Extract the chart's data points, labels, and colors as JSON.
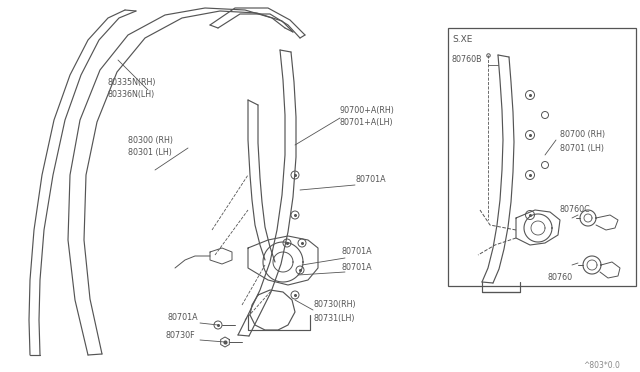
{
  "bg_color": "#ffffff",
  "line_color": "#555555",
  "text_color": "#555555",
  "fig_width": 6.4,
  "fig_height": 3.72,
  "dpi": 100,
  "watermark": "^803*0.0",
  "labels": {
    "80335N_RH": "80335N(RH)",
    "80336N_LH": "80336N(LH)",
    "80300_RH": "80300 (RH)",
    "80301_LH": "80301 (LH)",
    "90700A_RH": "90700+A(RH)",
    "80701A_LH": "80701+A(LH)",
    "80701A": "80701A",
    "80730_RH": "80730(RH)",
    "80731_LH": "80731(LH)",
    "80730F": "80730F",
    "SXE": "S.XE",
    "80760B": "80760B",
    "80700_RH": "80700 (RH)",
    "80701_LH": "80701 (LH)",
    "80760C": "80760C",
    "80760": "80760"
  }
}
